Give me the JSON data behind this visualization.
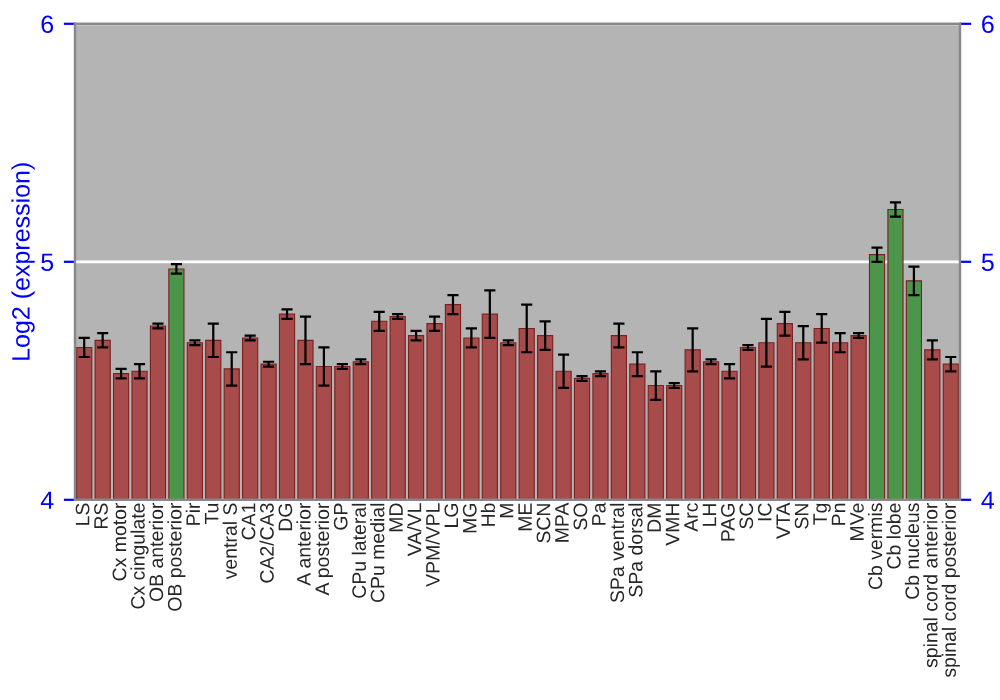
{
  "chart_data": {
    "type": "bar",
    "ylabel": "Log2 (expression)",
    "categories": [
      "LS",
      "RS",
      "Cx motor",
      "Cx cingulate",
      "OB anterior",
      "OB posterior",
      "Pir",
      "Tu",
      "ventral S",
      "CA1",
      "CA2/CA3",
      "DG",
      "A anterior",
      "A posterior",
      "GP",
      "CPu lateral",
      "CPu medial",
      "MD",
      "VA/VL",
      "VPM/VPL",
      "LG",
      "MG",
      "Hb",
      "M",
      "ME",
      "SCN",
      "MPA",
      "SO",
      "Pa",
      "SPa ventral",
      "SPa dorsal",
      "DM",
      "VMH",
      "Arc",
      "LH",
      "PAG",
      "SC",
      "IC",
      "VTA",
      "SN",
      "Tg",
      "Pn",
      "MVe",
      "Cb vermis",
      "Cb lobe",
      "Cb nucleus",
      "spinal cord anterior",
      "spinal cord posterior"
    ],
    "values": [
      4.64,
      4.67,
      4.53,
      4.54,
      4.73,
      4.97,
      4.66,
      4.67,
      4.55,
      4.68,
      4.57,
      4.78,
      4.67,
      4.56,
      4.56,
      4.58,
      4.75,
      4.77,
      4.69,
      4.74,
      4.82,
      4.68,
      4.78,
      4.66,
      4.72,
      4.69,
      4.54,
      4.51,
      4.53,
      4.69,
      4.57,
      4.48,
      4.48,
      4.63,
      4.58,
      4.54,
      4.64,
      4.66,
      4.74,
      4.66,
      4.72,
      4.66,
      4.69,
      5.03,
      5.22,
      4.92,
      4.63,
      4.57
    ],
    "errors": [
      0.04,
      0.03,
      0.02,
      0.03,
      0.01,
      0.02,
      0.01,
      0.07,
      0.07,
      0.01,
      0.01,
      0.02,
      0.1,
      0.08,
      0.01,
      0.01,
      0.04,
      0.01,
      0.02,
      0.03,
      0.04,
      0.04,
      0.1,
      0.01,
      0.1,
      0.06,
      0.07,
      0.01,
      0.01,
      0.05,
      0.05,
      0.06,
      0.01,
      0.09,
      0.01,
      0.03,
      0.01,
      0.1,
      0.05,
      0.07,
      0.06,
      0.04,
      0.01,
      0.03,
      0.03,
      0.06,
      0.04,
      0.03
    ],
    "colors": [
      "#b83c3c",
      "#b83c3c",
      "#b83c3c",
      "#b83c3c",
      "#b83c3c",
      "#3ea33e",
      "#b83c3c",
      "#b83c3c",
      "#b83c3c",
      "#b83c3c",
      "#b83c3c",
      "#b83c3c",
      "#b83c3c",
      "#b83c3c",
      "#b83c3c",
      "#b83c3c",
      "#b83c3c",
      "#b83c3c",
      "#b83c3c",
      "#b83c3c",
      "#b83c3c",
      "#b83c3c",
      "#b83c3c",
      "#b83c3c",
      "#b83c3c",
      "#b83c3c",
      "#b83c3c",
      "#b83c3c",
      "#b83c3c",
      "#b83c3c",
      "#b83c3c",
      "#b83c3c",
      "#b83c3c",
      "#b83c3c",
      "#b83c3c",
      "#b83c3c",
      "#b83c3c",
      "#b83c3c",
      "#b83c3c",
      "#b83c3c",
      "#b83c3c",
      "#b83c3c",
      "#b83c3c",
      "#3ea33e",
      "#3ea33e",
      "#3ea33e",
      "#b83c3c",
      "#b83c3c"
    ],
    "ylim": [
      4,
      6
    ],
    "yticks": [
      4,
      5,
      6
    ],
    "y2lim": [
      4,
      6
    ],
    "y2ticks": [
      4,
      5,
      6
    ],
    "grid": "y"
  }
}
